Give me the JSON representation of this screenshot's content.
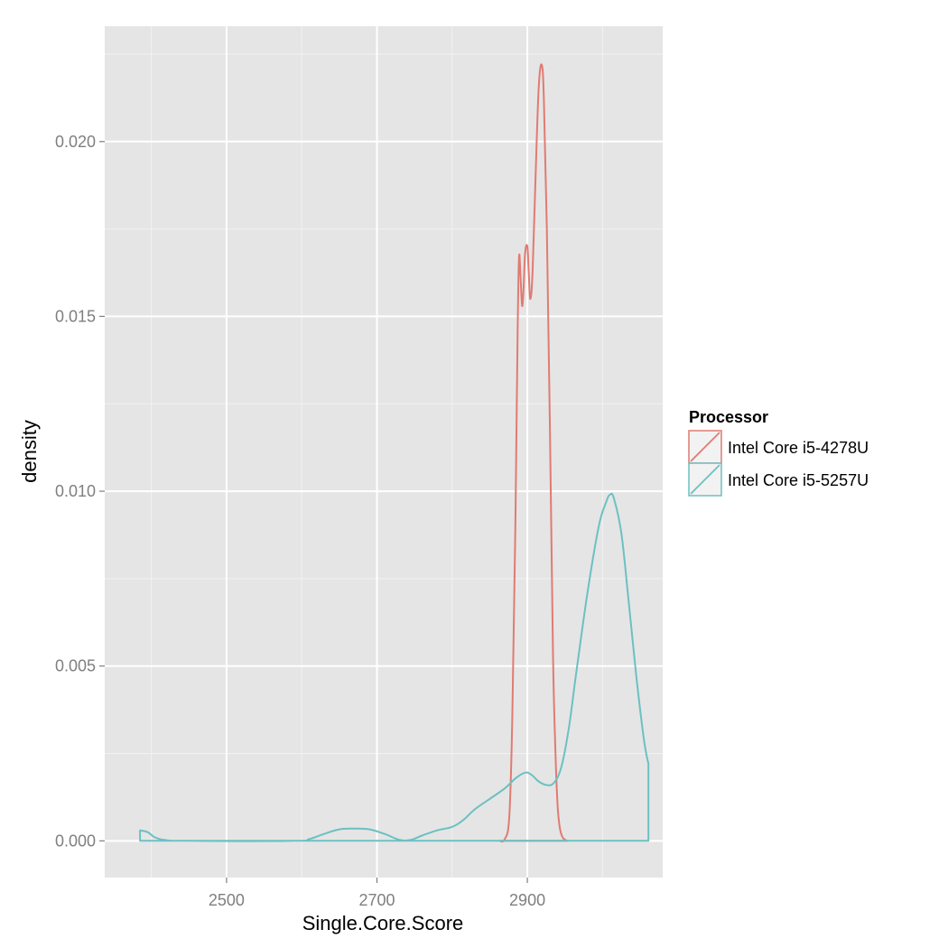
{
  "chart_data": {
    "type": "area",
    "title": "",
    "xlabel": "Single.Core.Score",
    "ylabel": "density",
    "xlim": [
      2338,
      3080
    ],
    "ylim": [
      -0.00105,
      0.0233
    ],
    "x_ticks": [
      2500,
      2700,
      2900
    ],
    "x_tick_labels": [
      "2500",
      "2700",
      "2900"
    ],
    "y_ticks": [
      0,
      0.005,
      0.01,
      0.015,
      0.02
    ],
    "y_tick_labels": [
      "0.000",
      "0.005",
      "0.010",
      "0.015",
      "0.020"
    ],
    "grid": true,
    "background": "#e5e5e5",
    "legend": {
      "title": "Processor",
      "position": "right"
    },
    "series": [
      {
        "name": "Intel Core i5-4278U",
        "color": "#e07b72",
        "x_range": [
          2863,
          2953
        ],
        "points": [
          [
            2863,
            0
          ],
          [
            2870,
            5e-05
          ],
          [
            2876,
            0.0007
          ],
          [
            2880,
            0.0035
          ],
          [
            2884,
            0.009
          ],
          [
            2887,
            0.0145
          ],
          [
            2889,
            0.0167
          ],
          [
            2891,
            0.0161
          ],
          [
            2893,
            0.0153
          ],
          [
            2895,
            0.0158
          ],
          [
            2897,
            0.0168
          ],
          [
            2900,
            0.017
          ],
          [
            2902,
            0.0162
          ],
          [
            2904,
            0.0155
          ],
          [
            2907,
            0.0163
          ],
          [
            2911,
            0.019
          ],
          [
            2915,
            0.0215
          ],
          [
            2919,
            0.0222
          ],
          [
            2922,
            0.0212
          ],
          [
            2926,
            0.0175
          ],
          [
            2930,
            0.0118
          ],
          [
            2934,
            0.0055
          ],
          [
            2937,
            0.0028
          ],
          [
            2940,
            0.0011
          ],
          [
            2943,
            0.0004
          ],
          [
            2947,
            0.0001
          ],
          [
            2953,
            0
          ]
        ]
      },
      {
        "name": "Intel Core i5-5257U",
        "color": "#6cc0c2",
        "x_range": [
          2385,
          3061
        ],
        "points": [
          [
            2385,
            0.0003
          ],
          [
            2395,
            0.00025
          ],
          [
            2405,
            0.0001
          ],
          [
            2420,
            2e-05
          ],
          [
            2450,
            0
          ],
          [
            2590,
            0
          ],
          [
            2610,
            5e-05
          ],
          [
            2630,
            0.0002
          ],
          [
            2650,
            0.00033
          ],
          [
            2670,
            0.00035
          ],
          [
            2690,
            0.00033
          ],
          [
            2710,
            0.0002
          ],
          [
            2730,
            3e-05
          ],
          [
            2745,
            3e-05
          ],
          [
            2760,
            0.00015
          ],
          [
            2780,
            0.0003
          ],
          [
            2800,
            0.0004
          ],
          [
            2815,
            0.0006
          ],
          [
            2830,
            0.0009
          ],
          [
            2850,
            0.0012
          ],
          [
            2870,
            0.0015
          ],
          [
            2885,
            0.0018
          ],
          [
            2897,
            0.00195
          ],
          [
            2905,
            0.0019
          ],
          [
            2915,
            0.0017
          ],
          [
            2925,
            0.0016
          ],
          [
            2935,
            0.00165
          ],
          [
            2945,
            0.0021
          ],
          [
            2955,
            0.0032
          ],
          [
            2965,
            0.0048
          ],
          [
            2980,
            0.0071
          ],
          [
            2995,
            0.009
          ],
          [
            3005,
            0.0097
          ],
          [
            3010,
            0.0099
          ],
          [
            3015,
            0.0098
          ],
          [
            3025,
            0.0088
          ],
          [
            3035,
            0.0068
          ],
          [
            3045,
            0.0047
          ],
          [
            3055,
            0.0029
          ],
          [
            3061,
            0.0022
          ]
        ]
      }
    ]
  }
}
